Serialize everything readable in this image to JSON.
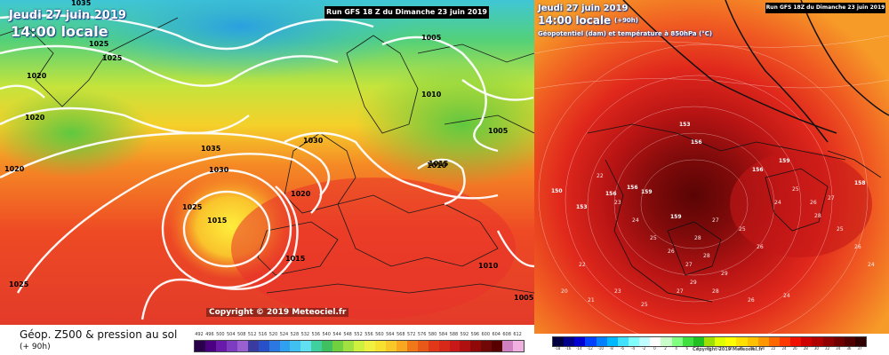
{
  "left": {
    "title_run": "Run GFS 18 Z du Dimanche 23 juin 2019",
    "date": "Jeudi 27 juin 2019",
    "time": "14:00 locale",
    "copyright": "Copyright © 2019 Meteociel.fr",
    "caption_main": "Géop. Z500 & pression au sol",
    "caption_sub": "(+ 90h)",
    "isobars": [
      "1035",
      "1025",
      "1025",
      "1020",
      "1020",
      "1020",
      "1035",
      "1030",
      "1030",
      "1025",
      "1015",
      "1020",
      "1015",
      "1010",
      "1005",
      "1010",
      "1005",
      "1015",
      "1025",
      "1010",
      "1005"
    ],
    "scale_labels": [
      "492",
      "496",
      "500",
      "504",
      "508",
      "512",
      "516",
      "520",
      "524",
      "528",
      "532",
      "536",
      "540",
      "544",
      "548",
      "552",
      "556",
      "560",
      "564",
      "568",
      "572",
      "576",
      "580",
      "584",
      "588",
      "592",
      "596",
      "600",
      "604",
      "608",
      "612"
    ],
    "scale_colors": [
      "#2b004a",
      "#4a0080",
      "#6a1aa8",
      "#7e3cc0",
      "#9a60d0",
      "#3a3aa0",
      "#2850c8",
      "#2a78e0",
      "#30a0f0",
      "#40c0f0",
      "#60e0f0",
      "#40d0a0",
      "#40c060",
      "#70d040",
      "#a0e040",
      "#d0f040",
      "#f0f040",
      "#f8e030",
      "#f8c828",
      "#f8a820",
      "#f07818",
      "#e85818",
      "#e03818",
      "#d82818",
      "#c81818",
      "#b01010",
      "#900808",
      "#700808",
      "#580000",
      "#d080c0",
      "#f0b0e0"
    ]
  },
  "right": {
    "title_run": "Run GFS 18Z du Dimanche 23 juin 2019",
    "date": "Jeudi 27 juin 2019",
    "time": "14:00 locale",
    "lead": "(+90h)",
    "subtitle": "Géopotentiel (dam) et température à 850hPa (°C)",
    "copyright": "Copyright 2019 Meteociel.fr",
    "geopotential_labels": [
      "150",
      "153",
      "156",
      "156",
      "159",
      "153",
      "156",
      "159",
      "156",
      "159",
      "158"
    ],
    "temperature_labels": [
      "25",
      "26",
      "27",
      "28",
      "29",
      "24",
      "23",
      "22",
      "25",
      "26",
      "27",
      "28",
      "24",
      "25",
      "26",
      "27",
      "28",
      "25",
      "26",
      "24",
      "22",
      "20",
      "21",
      "23",
      "25",
      "27",
      "29",
      "28",
      "26",
      "24"
    ],
    "scale_labels": [
      "-18",
      "-16",
      "-14",
      "-12",
      "-10",
      "-8",
      "-6",
      "-4",
      "-2",
      "0",
      "2",
      "4",
      "6",
      "8",
      "10",
      "12",
      "14",
      "16",
      "18",
      "20",
      "22",
      "24",
      "26",
      "28",
      "30",
      "32",
      "34",
      "36",
      "37"
    ],
    "scale_colors": [
      "#000040",
      "#00008a",
      "#0000d0",
      "#0040ff",
      "#0080ff",
      "#00b8ff",
      "#40e0ff",
      "#80ffff",
      "#c0ffff",
      "#ffffff",
      "#c8ffc8",
      "#80ff80",
      "#40e040",
      "#20c020",
      "#a0e000",
      "#e0ff00",
      "#ffff00",
      "#ffe000",
      "#ffc000",
      "#ff9800",
      "#ff6800",
      "#ff3800",
      "#f01000",
      "#d00000",
      "#b00000",
      "#900000",
      "#700000",
      "#500000",
      "#300000"
    ]
  }
}
